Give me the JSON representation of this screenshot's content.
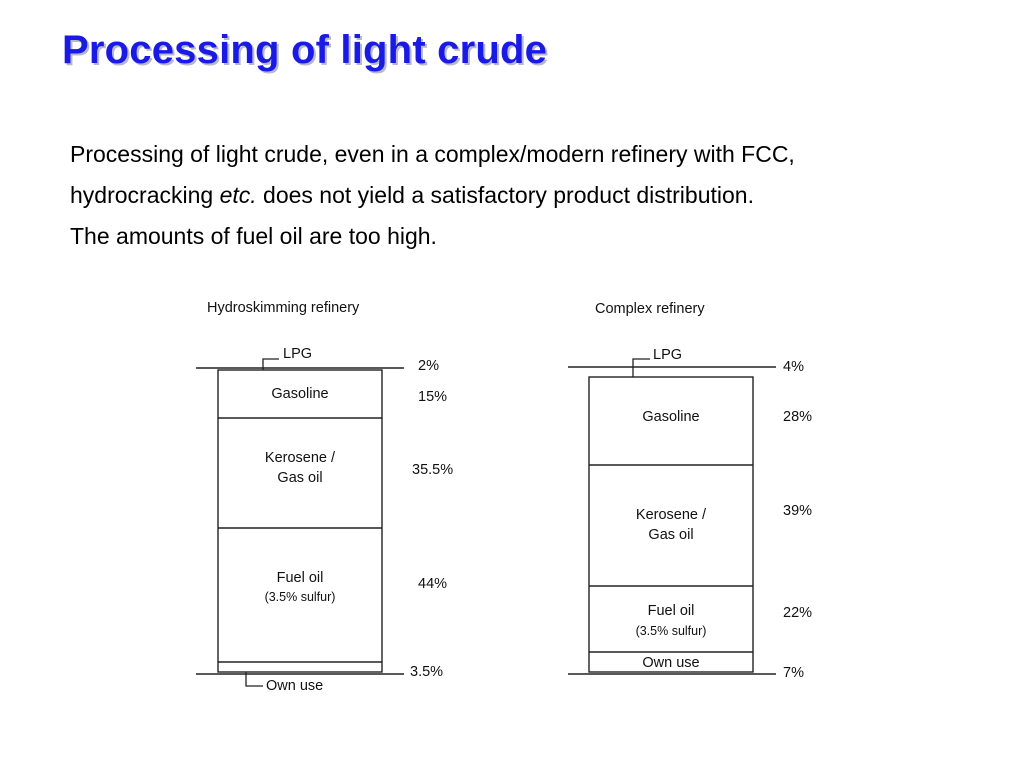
{
  "slide": {
    "title": "Processing of light crude",
    "paragraph": {
      "line1": "Processing of light crude, even in a complex/modern refinery with FCC,",
      "line2_before": "hydrocracking ",
      "line2_italic": "etc.",
      "line2_after": " does not yield a satisfactory product distribution.",
      "line3": "The amounts of fuel oil are too high."
    }
  },
  "diagrams": [
    {
      "title": "Hydroskimming refinery",
      "products": [
        {
          "label": "LPG",
          "sublabel": "",
          "percent_label": "2%",
          "value": 2
        },
        {
          "label": "Gasoline",
          "sublabel": "",
          "percent_label": "15%",
          "value": 15
        },
        {
          "label": "Kerosene /",
          "sublabel": "Gas oil",
          "percent_label": "35.5%",
          "value": 35.5
        },
        {
          "label": "Fuel oil",
          "sublabel": "(3.5% sulfur)",
          "percent_label": "44%",
          "value": 44
        },
        {
          "label": "Own use",
          "sublabel": "",
          "percent_label": "3.5%",
          "value": 3.5
        }
      ]
    },
    {
      "title": "Complex refinery",
      "products": [
        {
          "label": "LPG",
          "sublabel": "",
          "percent_label": "4%",
          "value": 4
        },
        {
          "label": "Gasoline",
          "sublabel": "",
          "percent_label": "28%",
          "value": 28
        },
        {
          "label": "Kerosene /",
          "sublabel": "Gas oil",
          "percent_label": "39%",
          "value": 39
        },
        {
          "label": "Fuel oil",
          "sublabel": "(3.5% sulfur)",
          "percent_label": "22%",
          "value": 22
        },
        {
          "label": "Own use",
          "sublabel": "",
          "percent_label": "7%",
          "value": 7
        }
      ]
    }
  ]
}
